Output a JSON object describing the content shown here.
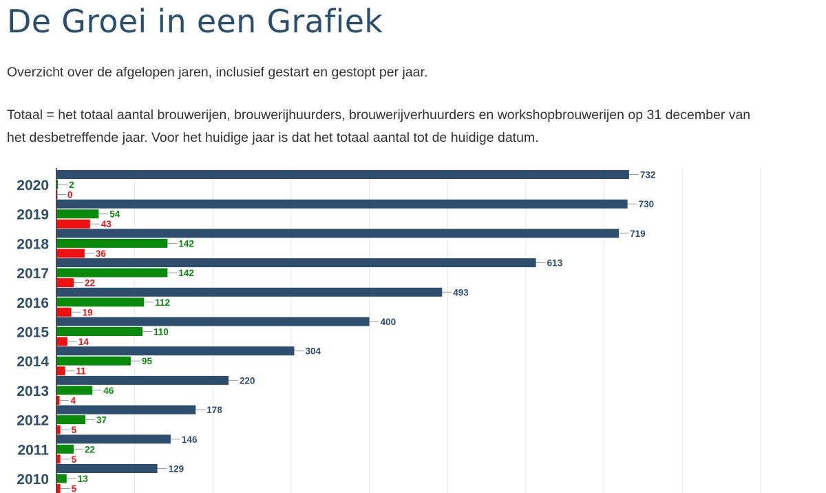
{
  "page": {
    "title": "De Groei in een Grafiek",
    "intro": "Overzicht over de afgelopen jaren, inclusief gestart en gestopt per jaar.",
    "description_lines": [
      "Totaal = het totaal aantal brouwerijen, brouwerijhuurders, brouwerijverhuurders en workshopbrouwerijen op 31 december van",
      "het desbetreffende jaar. Voor het huidige jaar is dat het totaal aantal tot de huidige datum."
    ]
  },
  "chart_data": {
    "type": "bar",
    "orientation": "horizontal",
    "categories": [
      "2020",
      "2019",
      "2018",
      "2017",
      "2016",
      "2015",
      "2014",
      "2013",
      "2012",
      "2011",
      "2010"
    ],
    "series": [
      {
        "values": [
          732,
          730,
          719,
          613,
          493,
          400,
          304,
          220,
          178,
          146,
          129
        ],
        "color": "#2d4e6c"
      },
      {
        "values": [
          2,
          54,
          142,
          142,
          112,
          110,
          95,
          46,
          37,
          22,
          13
        ],
        "color": "#0a8a0a"
      },
      {
        "values": [
          0,
          43,
          36,
          22,
          19,
          14,
          11,
          4,
          5,
          5,
          5
        ],
        "color": "#ee1111"
      }
    ],
    "xlim": [
      0,
      1000
    ],
    "grid": true,
    "data_labels": true,
    "title": "",
    "xlabel": "",
    "ylabel": ""
  }
}
